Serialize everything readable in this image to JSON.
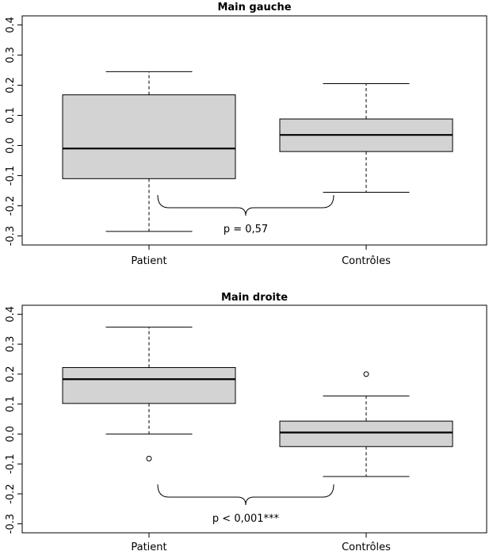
{
  "chart_data": [
    {
      "type": "boxplot",
      "title": "Main gauche",
      "categories": [
        "Patient",
        "Contrôles"
      ],
      "ylim": [
        -0.33,
        0.43
      ],
      "yticks": [
        "-0.3",
        "-0.2",
        "-0.1",
        "0.0",
        "0.1",
        "0.2",
        "0.3",
        "0.4"
      ],
      "tick_values": [
        -0.3,
        -0.2,
        -0.1,
        0.0,
        0.1,
        0.2,
        0.3,
        0.4
      ],
      "boxes": [
        {
          "whisker_low": -0.285,
          "q1": -0.11,
          "median": -0.01,
          "q3": 0.168,
          "whisker_high": 0.245,
          "outliers": []
        },
        {
          "whisker_low": -0.155,
          "q1": -0.02,
          "median": 0.035,
          "q3": 0.088,
          "whisker_high": 0.205,
          "outliers": []
        }
      ],
      "annotation": "p = 0,57",
      "box_color": "#d3d3d3",
      "grid": false
    },
    {
      "type": "boxplot",
      "title": "Main droite",
      "categories": [
        "Patient",
        "Contrôles"
      ],
      "ylim": [
        -0.33,
        0.43
      ],
      "yticks": [
        "-0.3",
        "-0.2",
        "-0.1",
        "0.0",
        "0.1",
        "0.2",
        "0.3",
        "0.4"
      ],
      "tick_values": [
        -0.3,
        -0.2,
        -0.1,
        0.0,
        0.1,
        0.2,
        0.3,
        0.4
      ],
      "boxes": [
        {
          "whisker_low": 0.0,
          "q1": 0.102,
          "median": 0.183,
          "q3": 0.222,
          "whisker_high": 0.357,
          "outliers": [
            -0.082
          ]
        },
        {
          "whisker_low": -0.142,
          "q1": -0.042,
          "median": 0.005,
          "q3": 0.043,
          "whisker_high": 0.127,
          "outliers": [
            0.2
          ]
        }
      ],
      "annotation": "p < 0,001***",
      "box_color": "#d3d3d3",
      "grid": false
    }
  ]
}
